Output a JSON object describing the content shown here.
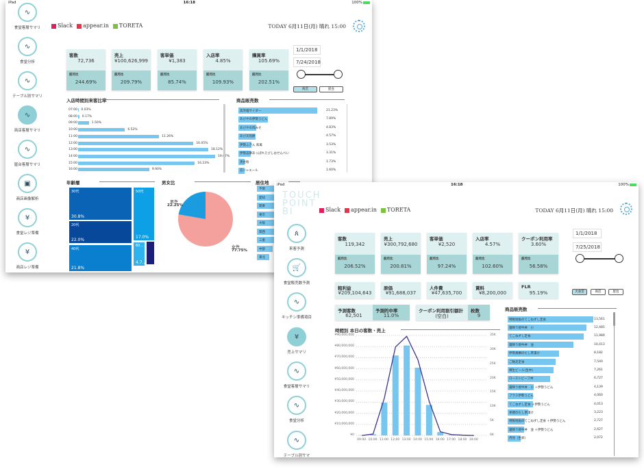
{
  "colors": {
    "accent": "#8fd0d6",
    "bar": "#77c6ef",
    "kpi_top": "#dff0f1",
    "kpi_bottom": "#a8d6d7",
    "line": "#3b3489",
    "pie_female": "#f4a09c",
    "pie_male": "#1b9be0"
  },
  "back": {
    "status": {
      "device": "iPad",
      "time": "16:18",
      "battery": "100%"
    },
    "sidebar": [
      {
        "label": "食堂客層サマリ",
        "icon": "line-chart-icon"
      },
      {
        "label": "食堂分析",
        "icon": "line-chart-icon"
      },
      {
        "label": "テーブル別サマリ",
        "icon": "line-chart-icon"
      },
      {
        "label": "商店客層サマリ",
        "icon": "line-chart-icon",
        "active": true
      },
      {
        "label": "屋台客層サマリ",
        "icon": "line-chart-icon"
      },
      {
        "label": "商店画像解析",
        "icon": "image-search-icon"
      },
      {
        "label": "食堂レジ準備",
        "icon": "yen-icon"
      },
      {
        "label": "商店レジ準備",
        "icon": "yen-icon"
      }
    ],
    "header": {
      "links": [
        "Slack",
        "appear.in",
        "TORETA"
      ],
      "today": "TODAY 6月11日(月) 晴れ 15:00"
    },
    "kpis": [
      {
        "title": "客数",
        "value": "72,736",
        "sub_label": "前月比",
        "sub_value": "244.69%"
      },
      {
        "title": "売上",
        "value": "¥100,626,999",
        "sub_label": "前月比",
        "sub_value": "209.79%"
      },
      {
        "title": "客単価",
        "value": "¥1,383",
        "sub_label": "前月比",
        "sub_value": "85.74%"
      },
      {
        "title": "入店率",
        "value": "4.85%",
        "sub_label": "前月比",
        "sub_value": "109.93%"
      },
      {
        "title": "購買率",
        "value": "105.69%",
        "sub_label": "前月比",
        "sub_value": "202.51%"
      }
    ],
    "date_from": "1/1/2018",
    "date_to": "7/24/2018",
    "buttons": [
      {
        "label": "商店",
        "active": true
      },
      {
        "label": "屋台",
        "active": false
      }
    ],
    "hourly_title": "入店時間別来客比率",
    "hourly": [
      {
        "label": "07:00",
        "value": 0.03,
        "text": "0.03%"
      },
      {
        "label": "08:00",
        "value": 0.17,
        "text": "0.17%"
      },
      {
        "label": "09:00",
        "value": 1.5,
        "text": "1.50%"
      },
      {
        "label": "10:00",
        "value": 6.52,
        "text": "6.52%"
      },
      {
        "label": "11:00",
        "value": 11.26,
        "text": "11.26%"
      },
      {
        "label": "12:00",
        "value": 16.05,
        "text": "16.05%"
      },
      {
        "label": "13:00",
        "value": 18.12,
        "text": "18.12%"
      },
      {
        "label": "14:00",
        "value": 19.07,
        "text": "19.07%"
      },
      {
        "label": "15:00",
        "value": 16.23,
        "text": "16.23%"
      },
      {
        "label": "16:00",
        "value": 9.9,
        "text": "9.90%"
      }
    ],
    "products_title": "商品販売数",
    "products": [
      {
        "label": "高浜塩サイダー",
        "value": 21.23,
        "text": "21.23%"
      },
      {
        "label": "あびやの伊勢うどん",
        "value": 7.89,
        "text": "7.89%"
      },
      {
        "label": "あびやの肉みそ",
        "value": 4.83,
        "text": "4.83%"
      },
      {
        "label": "あび天煎餅",
        "value": 4.57,
        "text": "4.57%"
      },
      {
        "label": "伊勢ふきん 朱萬",
        "value": 3.53,
        "text": "3.53%"
      },
      {
        "label": "伊勢志摩あっぱれえびしおせんべい",
        "value": 3.31,
        "text": "3.31%"
      },
      {
        "label": "黒金粉",
        "value": 1.73,
        "text": "1.73%"
      },
      {
        "label": "忍ジャエール",
        "value": 1.6,
        "text": "1.60%"
      }
    ],
    "age_title": "年齢層",
    "age": [
      {
        "label": "30代",
        "text": "30.8%",
        "value": 30.8,
        "color": "#0a63b5"
      },
      {
        "label": "20代",
        "text": "22.0%",
        "value": 22.0,
        "color": "#07489a"
      },
      {
        "label": "40代",
        "text": "21.8%",
        "value": 21.8,
        "color": "#0a7fd0"
      },
      {
        "label": "50代",
        "text": "17.0%",
        "value": 17.0,
        "color": "#0ea0e6"
      },
      {
        "label": "60…",
        "text": "4.7…",
        "value": 4.7,
        "color": "#2fb3ee"
      },
      {
        "label": "",
        "text": "",
        "value": 2.5,
        "color": "#1b1f7a"
      }
    ],
    "gender_title": "男女比",
    "gender": [
      {
        "label": "男性",
        "text": "22.25%",
        "value": 22.25
      },
      {
        "label": "女性",
        "text": "77.75%",
        "value": 77.75
      }
    ],
    "residence_title": "居住地",
    "residence": [
      {
        "label": "不明",
        "value": 1.0
      },
      {
        "label": "愛知",
        "value": 1.0
      },
      {
        "label": "関東",
        "value": 1.0
      },
      {
        "label": "東京",
        "value": 1.0
      },
      {
        "label": "大阪",
        "value": 1.0
      },
      {
        "label": "関西",
        "value": 0.55
      },
      {
        "label": "三重",
        "value": 0.5
      },
      {
        "label": "中部",
        "value": 0.45
      },
      {
        "label": "東北",
        "value": 0.35
      }
    ]
  },
  "front": {
    "status": {
      "device": "iPad",
      "time": "16:18",
      "battery": "100%"
    },
    "logo": [
      "TOUCH",
      "POINT",
      "BI"
    ],
    "sidebar": [
      {
        "label": "来客予測",
        "icon": "people-icon"
      },
      {
        "label": "食堂販売数予測",
        "icon": "cart-icon"
      },
      {
        "label": "キッチン準備項目",
        "icon": "line-chart-icon"
      },
      {
        "label": "売上サマリ",
        "icon": "yen-icon",
        "active": true
      },
      {
        "label": "食堂客層サマリ",
        "icon": "line-chart-icon"
      },
      {
        "label": "食堂分析",
        "icon": "line-chart-icon"
      },
      {
        "label": "テーブル別サマ",
        "icon": "line-chart-icon"
      }
    ],
    "header": {
      "links": [
        "Slack",
        "appear.in",
        "TORETA"
      ],
      "today": "TODAY 6月11日(月) 晴れ 15:00"
    },
    "kpis": [
      {
        "title": "客数",
        "value": "119,342",
        "sub_label": "前月比",
        "sub_value": "206.52%"
      },
      {
        "title": "売上",
        "value": "¥300,792,680",
        "sub_label": "前月比",
        "sub_value": "200.81%"
      },
      {
        "title": "客単価",
        "value": "¥2,520",
        "sub_label": "前月比",
        "sub_value": "97.24%"
      },
      {
        "title": "入店率",
        "value": "4.57%",
        "sub_label": "前月比",
        "sub_value": "102.60%"
      },
      {
        "title": "クーポン利用率",
        "value": "3.60%",
        "sub_label": "前月比",
        "sub_value": "56.58%"
      }
    ],
    "kpis2": [
      {
        "title": "粗利益",
        "value": "¥209,104,643"
      },
      {
        "title": "原価",
        "value": "¥91,688,037"
      },
      {
        "title": "人件費",
        "value": "¥47,635,700"
      },
      {
        "title": "賃料",
        "value": "¥8,200,000"
      },
      {
        "title": "FLR",
        "value": "95.19%"
      }
    ],
    "date_from": "1/1/2018",
    "date_to": "7/25/2018",
    "buttons": [
      {
        "label": "大食堂",
        "active": true
      },
      {
        "label": "商店",
        "active": false
      },
      {
        "label": "屋台",
        "active": false
      }
    ],
    "forecast": {
      "customers_label": "予測客数",
      "customers": "62,501",
      "accuracy_label": "予測的中率",
      "accuracy": "11.0%"
    },
    "coupon": {
      "discount_label": "クーポン利用割引額計",
      "discount": "(空白)",
      "count_label": "枚数",
      "count": "9"
    },
    "products_title": "商品販売数",
    "products": [
      {
        "label": "特製地魚のてこねずし定食",
        "value": 13561,
        "text": "13,561"
      },
      {
        "label": "霜降り焼牛丼　小",
        "value": 12485,
        "text": "12,485"
      },
      {
        "label": "てこねずし定食",
        "value": 11989,
        "text": "11,989"
      },
      {
        "label": "霜降り焼牛丼　並",
        "value": 10413,
        "text": "10,413"
      },
      {
        "label": "伊勢真鯛のだし茶漬け",
        "value": 8182,
        "text": "8,182"
      },
      {
        "label": "ご馳走定食",
        "value": 7540,
        "text": "7,540"
      },
      {
        "label": "樽生ビール(生中)",
        "value": 7261,
        "text": "7,261"
      },
      {
        "label": "ローストビーフ丼",
        "value": 6727,
        "text": "6,727"
      },
      {
        "label": "霜降り焼牛丼　小 ＋伊勢うどん",
        "value": 4139,
        "text": "4,139"
      },
      {
        "label": "プラス伊勢うどん",
        "value": 4060,
        "text": "4,060"
      },
      {
        "label": "てこねずし定食 ＋伊勢うどん",
        "value": 4013,
        "text": "4,013"
      },
      {
        "label": "季節のだし茶漬け",
        "value": 3223,
        "text": "3,223"
      },
      {
        "label": "特製地魚のてこねずし定食 ＋伊勢うどん",
        "value": 2727,
        "text": "2,727"
      },
      {
        "label": "霜降り焼牛丼　並 ＋伊勢うどん",
        "value": 2627,
        "text": "2,627"
      },
      {
        "label": "月見（生卵）",
        "value": 2072,
        "text": "2,072"
      }
    ]
  },
  "chart_data": {
    "type": "bar+line",
    "title": "時間別 本日の客数・売上",
    "categories": [
      "09:00",
      "10:00",
      "11:00",
      "12:00",
      "13:00",
      "14:00",
      "15:00",
      "16:00",
      "17:00",
      "18:00",
      "19:00"
    ],
    "series": [
      {
        "type": "bar",
        "axis": "left",
        "values": [
          300000,
          1000000,
          29500000,
          72000000,
          81000000,
          61000000,
          27500000,
          3000000,
          500000,
          0,
          0
        ]
      },
      {
        "type": "line",
        "axis": "right",
        "values": [
          0,
          500,
          13000,
          31000,
          34700,
          26500,
          12000,
          1300,
          300,
          100,
          0
        ]
      }
    ],
    "ylim_left": [
      0,
      90000000
    ],
    "yticks_left": [
      "¥0",
      "¥10,000,000",
      "¥20,000,000",
      "¥30,000,000",
      "¥40,000,000",
      "¥50,000,000",
      "¥60,000,000",
      "¥70,000,000",
      "¥80,000,000",
      "¥90,000,000"
    ],
    "ylim_right": [
      0,
      35000
    ],
    "yticks_right": [
      "0K",
      "5K",
      "10K",
      "15K",
      "20K",
      "25K",
      "30K",
      "35K"
    ],
    "grid": true
  }
}
